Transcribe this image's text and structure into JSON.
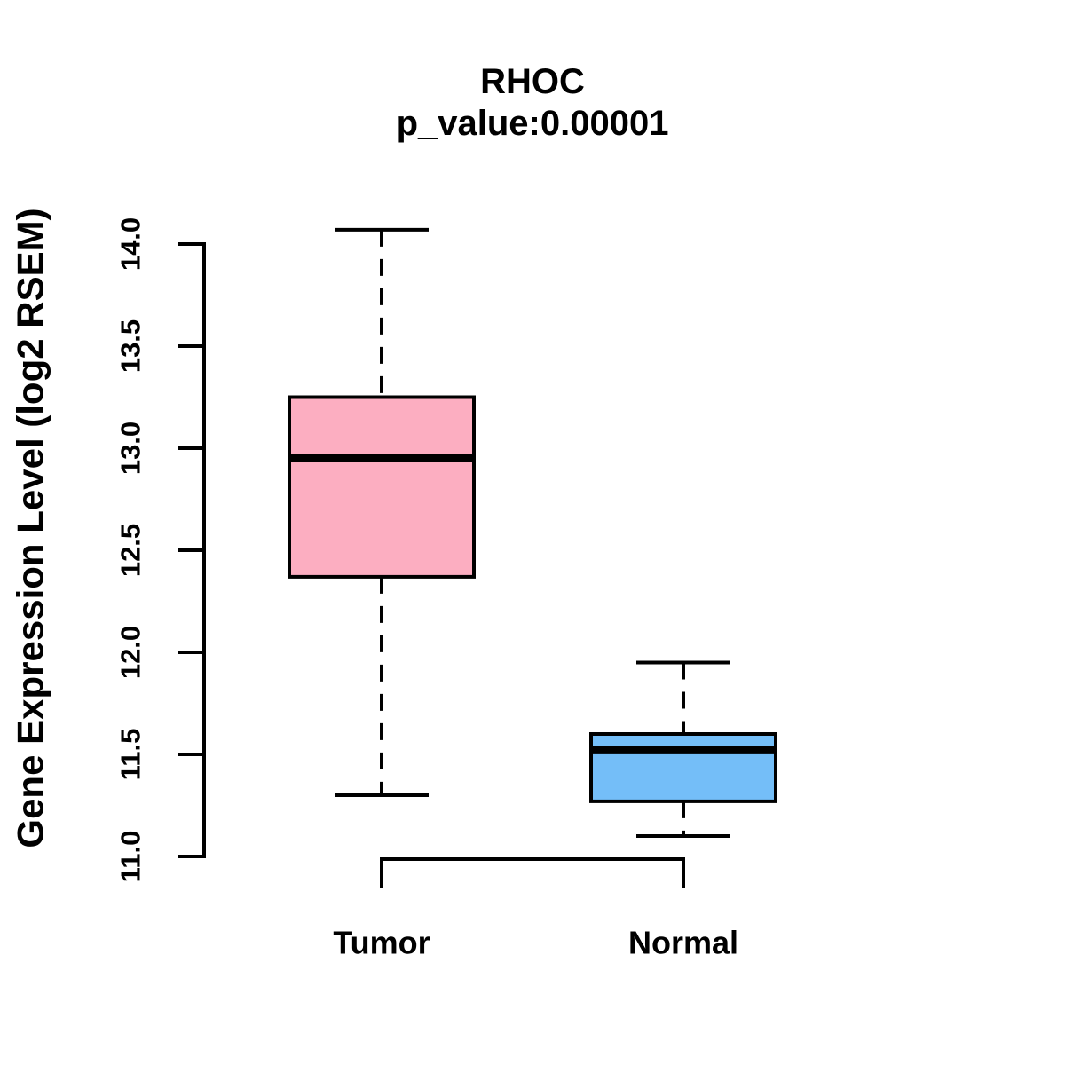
{
  "title": "RHOC",
  "subtitle": "p_value:0.00001",
  "y_axis": {
    "label": "Gene Expression Level (log2 RSEM)",
    "tick_labels": [
      "11.0",
      "11.5",
      "12.0",
      "12.5",
      "13.0",
      "13.5",
      "14.0"
    ],
    "tick_values": [
      11.0,
      11.5,
      12.0,
      12.5,
      13.0,
      13.5,
      14.0
    ],
    "min": 11.0,
    "max": 14.0
  },
  "chart_data": {
    "type": "boxplot",
    "title": "RHOC",
    "subtitle": "p_value:0.00001",
    "xlabel": "",
    "ylabel": "Gene Expression Level (log2 RSEM)",
    "ylim": [
      11.0,
      14.0
    ],
    "grid": false,
    "legend": "none",
    "categories": [
      "Tumor",
      "Normal"
    ],
    "series": [
      {
        "name": "Tumor",
        "whisker_low": 11.3,
        "q1": 12.37,
        "median": 12.95,
        "q3": 13.25,
        "whisker_high": 14.07,
        "fill_color": "#FCAEC1"
      },
      {
        "name": "Normal",
        "whisker_low": 11.1,
        "q1": 11.27,
        "median": 11.52,
        "q3": 11.6,
        "whisker_high": 11.95,
        "fill_color": "#74BEF8"
      }
    ]
  },
  "colors": {
    "tumor_fill": "#FCAEC1",
    "normal_fill": "#74BEF8",
    "line": "#000000",
    "background": "#ffffff"
  }
}
